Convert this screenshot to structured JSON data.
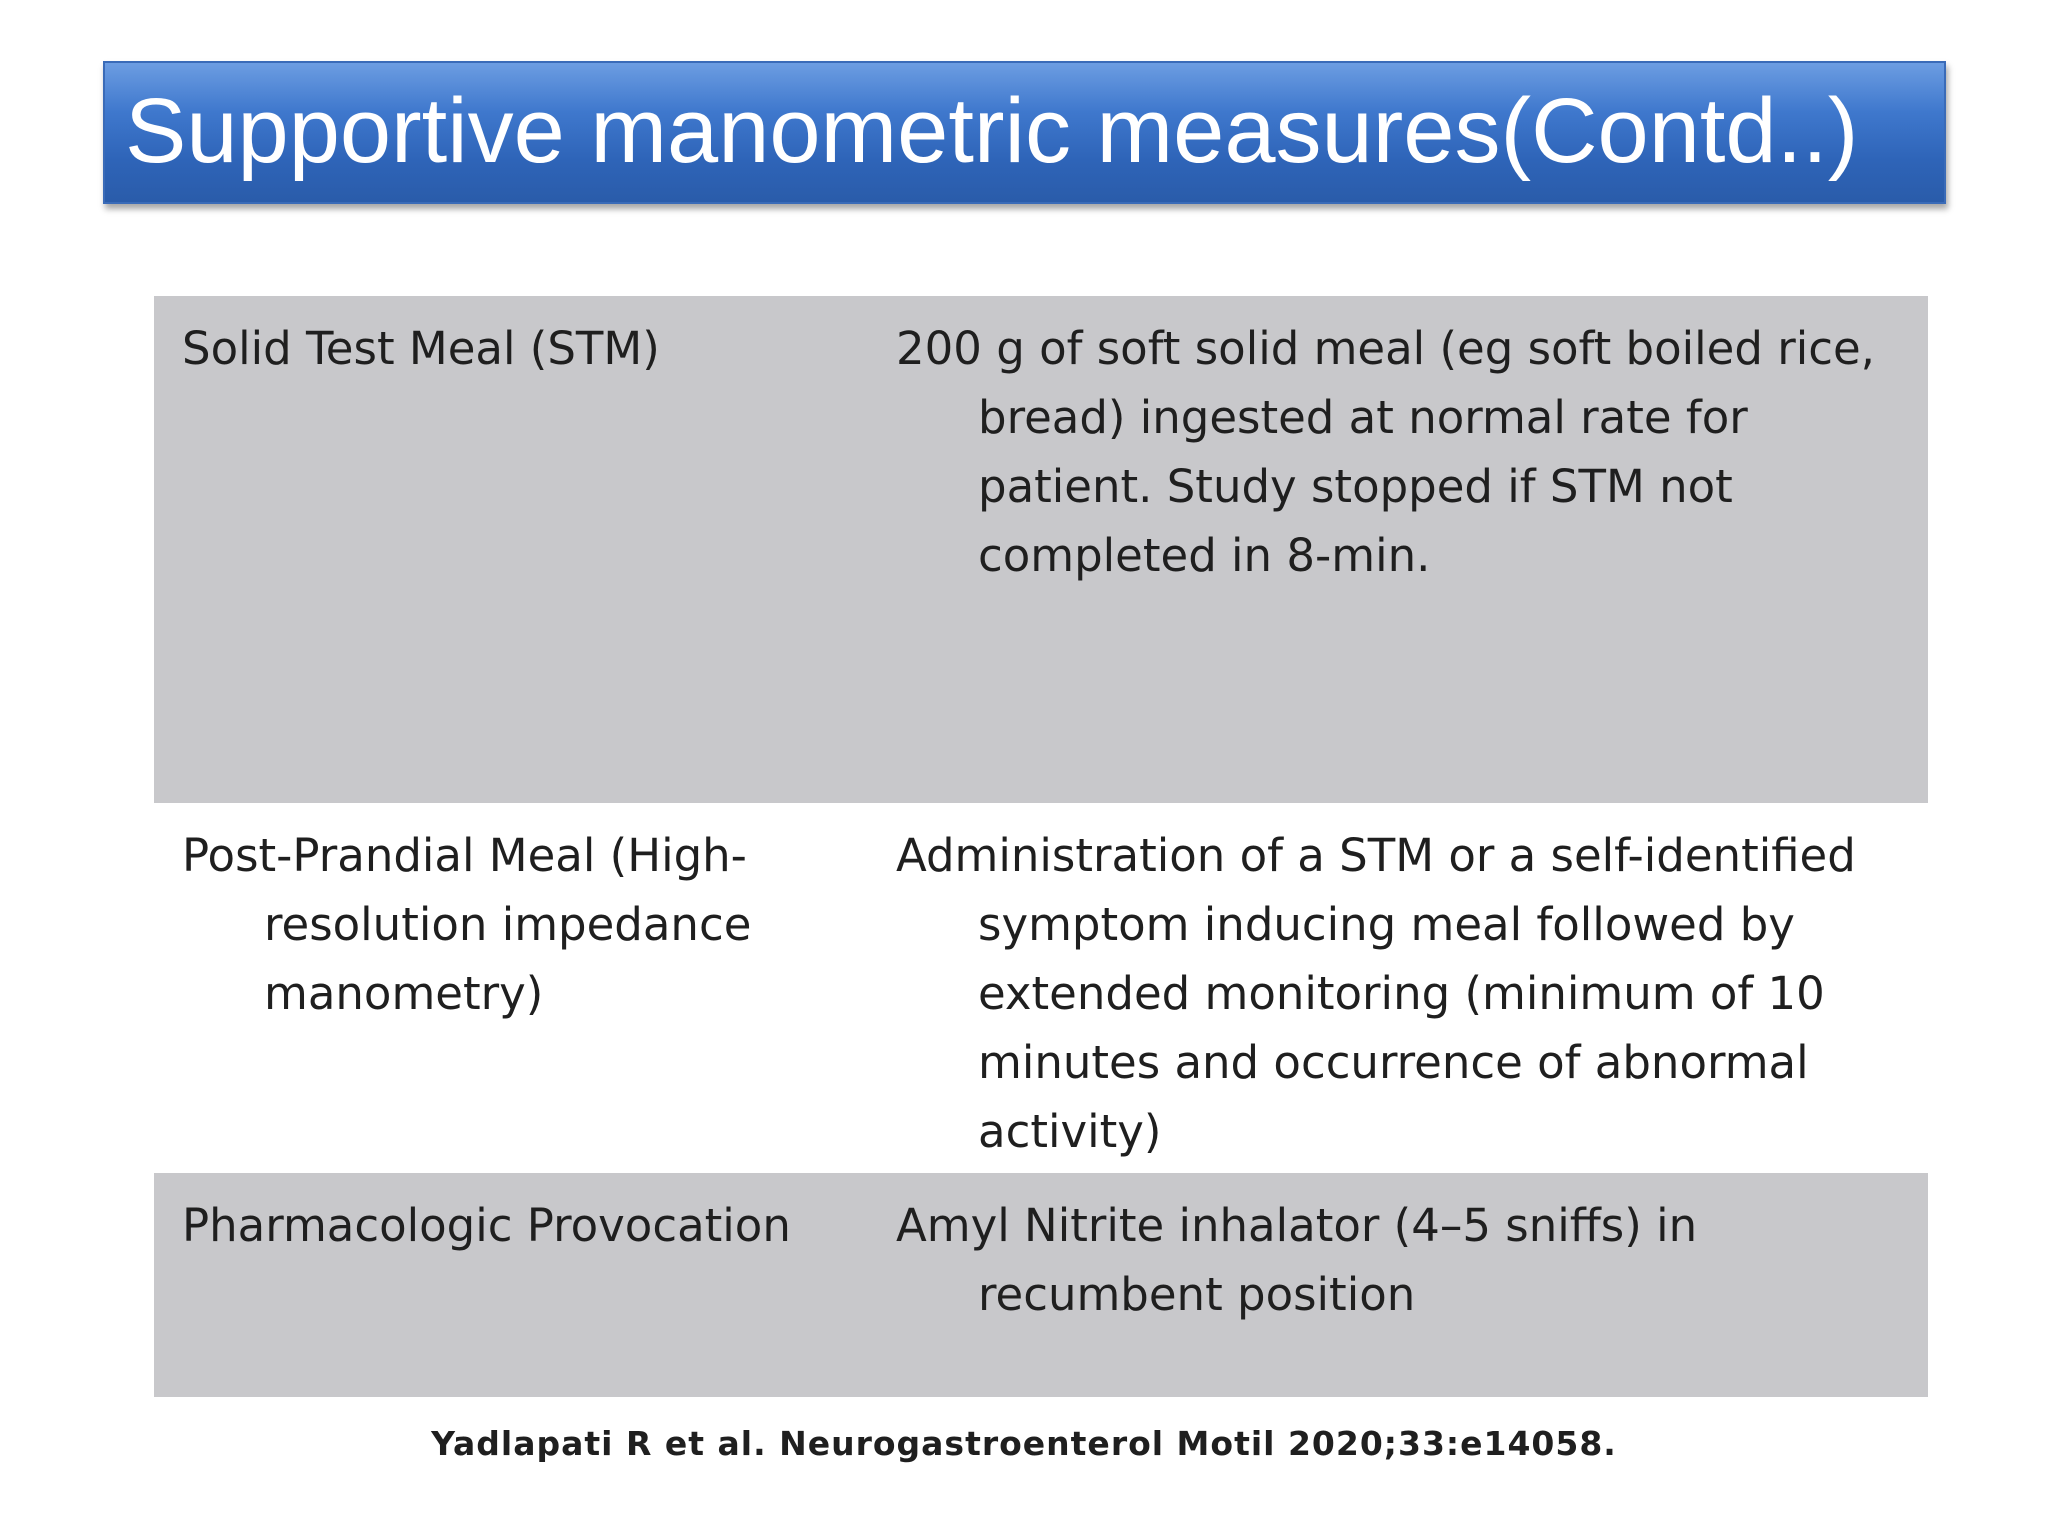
{
  "title": "Supportive manometric measures(Contd..)",
  "table": {
    "rows": [
      {
        "measure": "Solid Test Meal (STM)",
        "description": "200 g of soft solid meal (eg soft boiled rice, bread) ingested at normal rate for patient. Study stopped if STM not completed in 8-min."
      },
      {
        "measure": "Post-Prandial Meal (High-resolution impedance manometry)",
        "description": "Administration of a STM or a self-identified symptom inducing meal followed by extended monitoring (minimum of 10 minutes and occurrence of abnormal activity)"
      },
      {
        "measure": "Pharmacologic Provocation",
        "description": "Amyl Nitrite inhalator (4–5 sniffs) in recumbent position"
      }
    ]
  },
  "citation": "Yadlapati R et al. Neurogastroenterol Motil  2020;33:e14058."
}
